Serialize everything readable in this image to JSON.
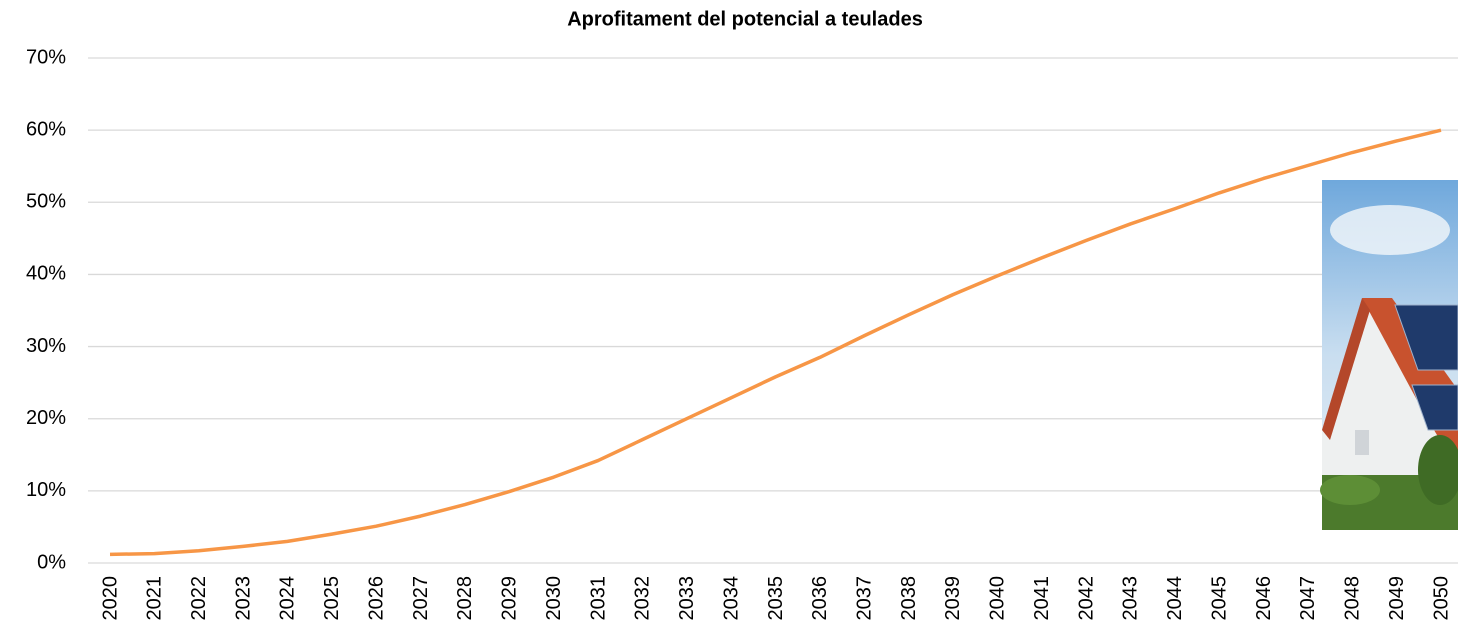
{
  "chart_data": {
    "type": "line",
    "title": "Aprofitament del potencial a teulades",
    "categories": [
      "2020",
      "2021",
      "2022",
      "2023",
      "2024",
      "2025",
      "2026",
      "2027",
      "2028",
      "2029",
      "2030",
      "2031",
      "2032",
      "2033",
      "2034",
      "2035",
      "2036",
      "2037",
      "2038",
      "2039",
      "2040",
      "2041",
      "2042",
      "2043",
      "2044",
      "2045",
      "2046",
      "2047",
      "2048",
      "2049",
      "2050"
    ],
    "values": [
      1.2,
      1.3,
      1.7,
      2.3,
      3.0,
      4.0,
      5.1,
      6.5,
      8.1,
      9.9,
      11.9,
      14.2,
      17.1,
      20.0,
      22.9,
      25.8,
      28.5,
      31.5,
      34.4,
      37.2,
      39.8,
      42.3,
      44.7,
      47.0,
      49.1,
      51.3,
      53.3,
      55.1,
      56.9,
      58.5,
      60.0
    ],
    "color": "#f79646",
    "ylim": [
      0,
      70
    ],
    "yticks": [
      {
        "value": 0,
        "label": "0%"
      },
      {
        "value": 10,
        "label": "10%"
      },
      {
        "value": 20,
        "label": "20%"
      },
      {
        "value": 30,
        "label": "30%"
      },
      {
        "value": 40,
        "label": "40%"
      },
      {
        "value": 50,
        "label": "50%"
      },
      {
        "value": 60,
        "label": "60%"
      },
      {
        "value": 70,
        "label": "70%"
      }
    ],
    "grid": true
  }
}
